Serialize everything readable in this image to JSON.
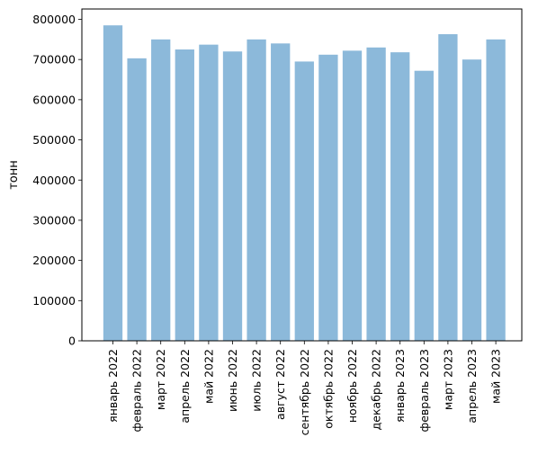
{
  "chart_data": {
    "type": "bar",
    "title": "",
    "xlabel": "",
    "ylabel": "тонн",
    "ylim": [
      0,
      800000
    ],
    "yticks": [
      0,
      100000,
      200000,
      300000,
      400000,
      500000,
      600000,
      700000,
      800000
    ],
    "ytick_labels": [
      "0",
      "100000",
      "200000",
      "300000",
      "400000",
      "500000",
      "600000",
      "700000",
      "800000"
    ],
    "grid": false,
    "legend": "none",
    "bar_color": "#8cb9da",
    "categories": [
      "январь 2022",
      "февраль 2022",
      "март 2022",
      "апрель 2022",
      "май 2022",
      "июнь 2022",
      "июль 2022",
      "август 2022",
      "сентябрь 2022",
      "октябрь 2022",
      "ноябрь 2022",
      "декабрь 2022",
      "январь 2023",
      "февраль 2023",
      "март 2023",
      "апрель 2023",
      "май 2023"
    ],
    "values": [
      785000,
      703000,
      750000,
      725000,
      737000,
      720000,
      750000,
      740000,
      695000,
      712000,
      722000,
      730000,
      718000,
      672000,
      763000,
      700000,
      750000
    ]
  }
}
